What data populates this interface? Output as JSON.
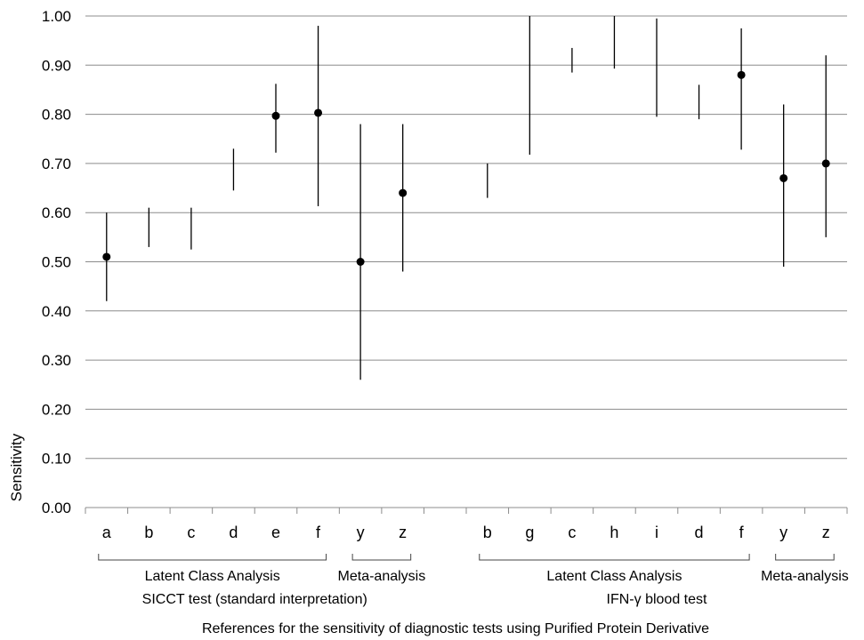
{
  "chart_data": {
    "type": "errorbar",
    "title": "",
    "xlabel": "References for  the sensitivity of diagnostic tests using Purified Protein Derivative",
    "ylabel": "Sensitivity",
    "ylim": [
      0,
      1
    ],
    "ytick_step": 0.1,
    "yticks": [
      "0.00",
      "0.10",
      "0.20",
      "0.30",
      "0.40",
      "0.50",
      "0.60",
      "0.70",
      "0.80",
      "0.90",
      "1.00"
    ],
    "grid": "horizontal",
    "categories": [
      "a",
      "b",
      "c",
      "d",
      "e",
      "f",
      "y",
      "z",
      "",
      "b",
      "g",
      "c",
      "h",
      "i",
      "d",
      "f",
      "y",
      "z"
    ],
    "points": [
      {
        "label": "a",
        "estimate": 0.51,
        "lower": 0.42,
        "upper": 0.6
      },
      {
        "label": "b",
        "estimate": null,
        "lower": 0.53,
        "upper": 0.61
      },
      {
        "label": "c",
        "estimate": null,
        "lower": 0.525,
        "upper": 0.61
      },
      {
        "label": "d",
        "estimate": null,
        "lower": 0.645,
        "upper": 0.73
      },
      {
        "label": "e",
        "estimate": 0.797,
        "lower": 0.722,
        "upper": 0.862
      },
      {
        "label": "f",
        "estimate": 0.803,
        "lower": 0.613,
        "upper": 0.98
      },
      {
        "label": "y",
        "estimate": 0.5,
        "lower": 0.26,
        "upper": 0.78
      },
      {
        "label": "z",
        "estimate": 0.64,
        "lower": 0.48,
        "upper": 0.78
      },
      {
        "label": "",
        "estimate": null,
        "lower": null,
        "upper": null
      },
      {
        "label": "b",
        "estimate": null,
        "lower": 0.63,
        "upper": 0.7
      },
      {
        "label": "g",
        "estimate": null,
        "lower": 0.718,
        "upper": 1.0
      },
      {
        "label": "c",
        "estimate": null,
        "lower": 0.885,
        "upper": 0.935
      },
      {
        "label": "h",
        "estimate": null,
        "lower": 0.893,
        "upper": 1.0
      },
      {
        "label": "i",
        "estimate": null,
        "lower": 0.795,
        "upper": 0.995
      },
      {
        "label": "d",
        "estimate": null,
        "lower": 0.79,
        "upper": 0.86
      },
      {
        "label": "f",
        "estimate": 0.88,
        "lower": 0.728,
        "upper": 0.975
      },
      {
        "label": "y",
        "estimate": 0.67,
        "lower": 0.49,
        "upper": 0.82
      },
      {
        "label": "z",
        "estimate": 0.7,
        "lower": 0.55,
        "upper": 0.92
      }
    ],
    "groups": [
      {
        "label": "Latent Class Analysis",
        "from": 0,
        "to": 5
      },
      {
        "label": "Meta-analysis",
        "from": 6,
        "to": 7
      },
      {
        "label": "Latent Class Analysis",
        "from": 9,
        "to": 15
      },
      {
        "label": "Meta-analysis",
        "from": 16,
        "to": 17
      }
    ],
    "test_labels": [
      {
        "label": "SICCT test (standard interpretation)",
        "from": 0,
        "to": 7
      },
      {
        "label": "IFN-γ blood test",
        "from": 9,
        "to": 17
      }
    ]
  }
}
